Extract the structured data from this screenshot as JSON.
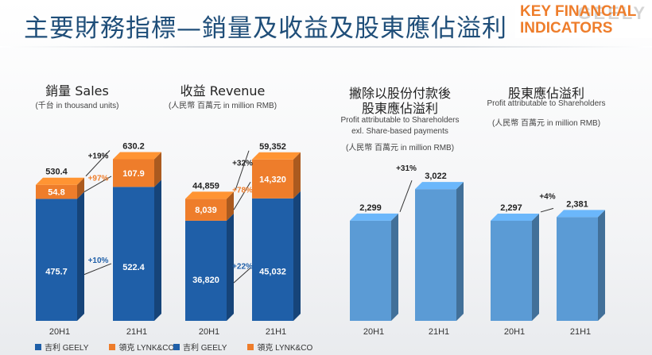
{
  "header": {
    "title": "主要財務指標—銷量及收益及股東應佔溢利",
    "badge_line1": "KEY FINANCIAL",
    "badge_line2": "INDICATORS",
    "watermark": "GEELY"
  },
  "colors": {
    "geely": "#1f5fa8",
    "lynk": "#ee7d2b",
    "profit": "#5b9bd5"
  },
  "panels": [
    {
      "title": "銷量 Sales",
      "subtitle": "(千台 in thousand units)"
    },
    {
      "title": "收益 Revenue",
      "subtitle": "(人民幣 百萬元 in million RMB)"
    },
    {
      "title_line1": "撇除以股份付款後",
      "title_line2": "股東應佔溢利",
      "subtitle_line1": "Profit attributable to Shareholders",
      "subtitle_line2": "exl. Share-based payments",
      "subtitle_line3": "(人民幣 百萬元 in million RMB)"
    },
    {
      "title": "股東應佔溢利",
      "subtitle_line1": "Profit attributable to Shareholders",
      "subtitle_line2": "(人民幣 百萬元 in million RMB)"
    }
  ],
  "legend": {
    "geely": "吉利 GEELY",
    "lynk": "領克 LYNK&CO"
  },
  "chart_data": [
    {
      "type": "bar",
      "stacked": true,
      "title": "銷量 Sales",
      "subtitle": "(千台 in thousand units)",
      "categories": [
        "20H1",
        "21H1"
      ],
      "series": [
        {
          "name": "吉利 GEELY",
          "values": [
            475.7,
            522.4
          ],
          "growth": "+10%"
        },
        {
          "name": "領克 LYNK&CO",
          "values": [
            54.8,
            107.9
          ],
          "growth": "+97%"
        }
      ],
      "totals": [
        "530.4",
        "630.2"
      ],
      "total_growth": "+19%",
      "ymax": 700
    },
    {
      "type": "bar",
      "stacked": true,
      "title": "收益 Revenue",
      "subtitle": "(人民幣 百萬元 in million RMB)",
      "categories": [
        "20H1",
        "21H1"
      ],
      "series": [
        {
          "name": "吉利 GEELY",
          "values": [
            36820,
            45032
          ],
          "labels": [
            "36,820",
            "45,032"
          ],
          "growth": "+22%"
        },
        {
          "name": "領克 LYNK&CO",
          "values": [
            8039,
            14320
          ],
          "labels": [
            "8,039",
            "14,320"
          ],
          "growth": "+78%"
        }
      ],
      "totals": [
        "44,859",
        "59,352"
      ],
      "total_growth": "+32%",
      "ymax": 66000
    },
    {
      "type": "bar",
      "title": "撇除以股份付款後股東應佔溢利 Profit attributable to Shareholders exl. Share-based payments",
      "subtitle": "(人民幣 百萬元 in million RMB)",
      "categories": [
        "20H1",
        "21H1"
      ],
      "values": [
        2299,
        3022
      ],
      "labels": [
        "2,299",
        "3,022"
      ],
      "growth": "+31%",
      "ymax": 4100
    },
    {
      "type": "bar",
      "title": "股東應佔溢利 Profit attributable to Shareholders",
      "subtitle": "(人民幣 百萬元 in million RMB)",
      "categories": [
        "20H1",
        "21H1"
      ],
      "values": [
        2297,
        2381
      ],
      "labels": [
        "2,297",
        "2,381"
      ],
      "growth": "+4%",
      "ymax": 4100
    }
  ]
}
